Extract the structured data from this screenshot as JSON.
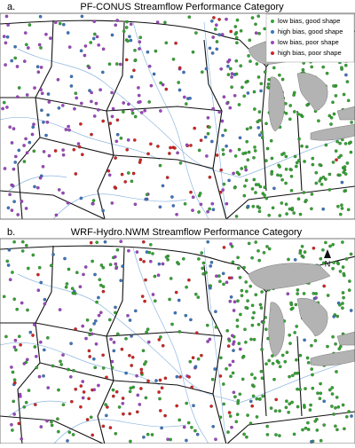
{
  "panels": [
    {
      "label": "a.",
      "title": "PF-CONUS Streamflow Performance Category",
      "legend": [
        {
          "label": "low bias, good shape",
          "color": "#33a532"
        },
        {
          "label": "high bias, good shape",
          "color": "#3b76c0"
        },
        {
          "label": "low bias, poor shape",
          "color": "#9e45c2"
        },
        {
          "label": "high bias, poor shape",
          "color": "#d42323"
        }
      ]
    },
    {
      "label": "b.",
      "title": "WRF-Hydro.NWM Streamflow Performance Category",
      "north": "N"
    }
  ]
}
